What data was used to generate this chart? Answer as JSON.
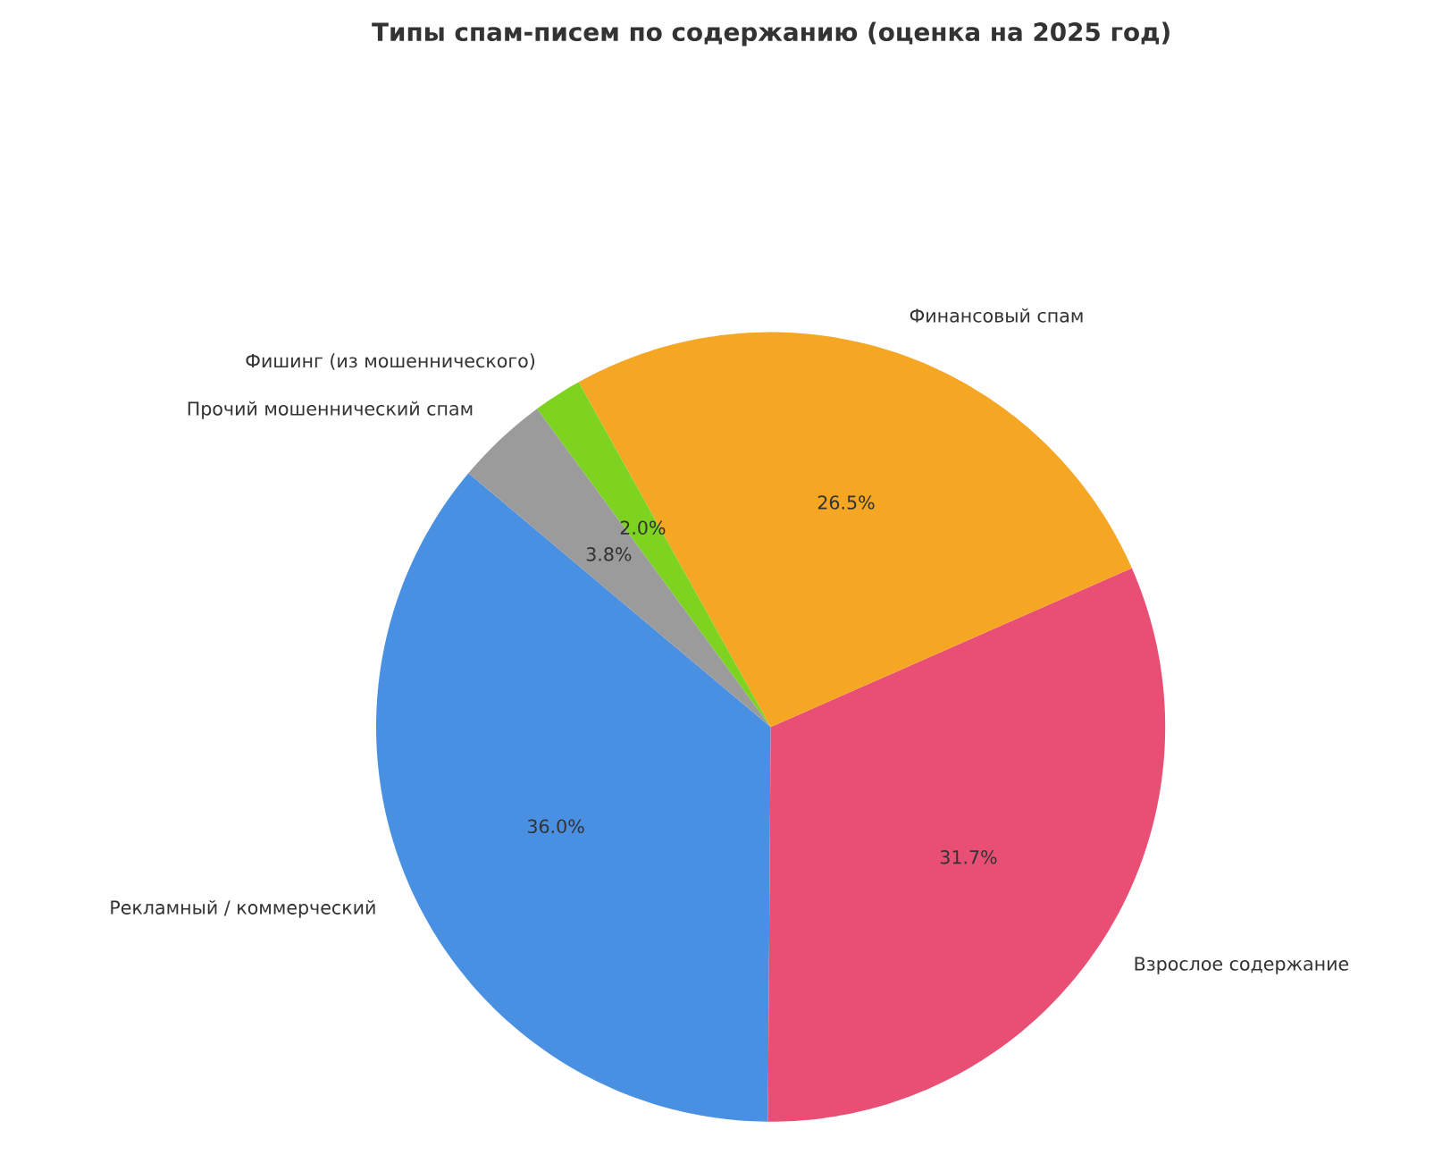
{
  "chart_data": {
    "type": "pie",
    "title": "Типы спам-писем по содержанию (оценка на 2025 год)",
    "categories": [
      "Рекламный / коммерческий",
      "Взрослое содержание",
      "Финансовый спам",
      "Фишинг (из мошеннического)",
      "Прочий мошеннический спам"
    ],
    "values": [
      36.0,
      31.7,
      26.5,
      2.0,
      3.8
    ],
    "colors": [
      "#4a90e2",
      "#e94f75",
      "#f5a623",
      "#7ed321",
      "#9b9b9b"
    ],
    "value_labels": [
      "36.0%",
      "31.7%",
      "26.5%",
      "2.0%",
      "3.8%"
    ]
  }
}
